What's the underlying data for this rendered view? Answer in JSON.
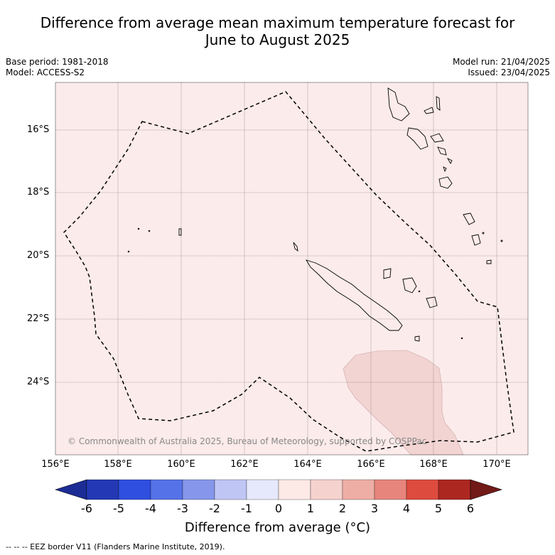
{
  "title_line1": "Difference from average mean maximum temperature forecast for",
  "title_line2": "June to August 2025",
  "base_period": "Base period: 1981-2018",
  "model": "Model: ACCESS-S2",
  "model_run": "Model run: 21/04/2025",
  "issued": "Issued: 23/04/2025",
  "copyright": "© Commonwealth of Australia 2025, Bureau of Meteorology, supported by COSPPac",
  "lat_ticks": [
    "16°S",
    "18°S",
    "20°S",
    "22°S",
    "24°S"
  ],
  "lon_ticks": [
    "156°E",
    "158°E",
    "160°E",
    "162°E",
    "164°E",
    "166°E",
    "168°E",
    "170°E"
  ],
  "colorbar": {
    "labels": [
      "-6",
      "-5",
      "-4",
      "-3",
      "-2",
      "-1",
      "0",
      "1",
      "2",
      "3",
      "4",
      "5",
      "6"
    ],
    "colors": [
      "#1c2c94",
      "#2338b4",
      "#2e4fe0",
      "#5672e8",
      "#8696ea",
      "#c0c6f4",
      "#e6e9fb",
      "#fde9e6",
      "#f5d2ce",
      "#eeaea6",
      "#e7857c",
      "#dd4b3e",
      "#ad2721",
      "#711a18"
    ],
    "title": "Difference from average (°C)"
  },
  "footnote": "-- -- -- EEZ border V11 (Flanders Marine Institute, 2019).",
  "colors": {
    "map_background": "#fbebea",
    "warm_region": "#f2d4d2"
  }
}
